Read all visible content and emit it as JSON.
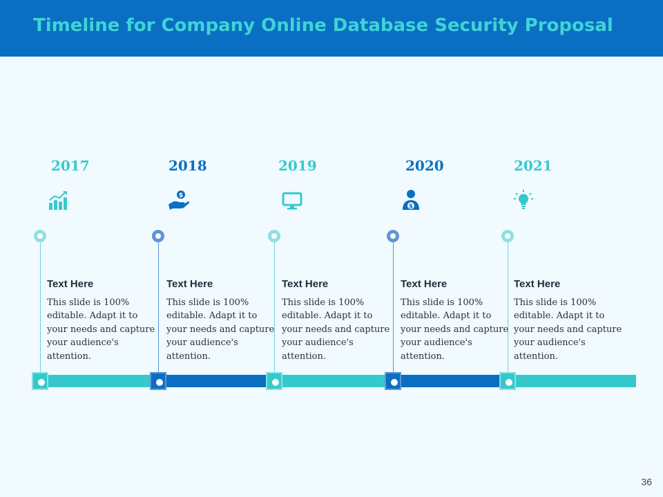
{
  "slide": {
    "title": "Timeline for Company Online Database Security Proposal",
    "page_number": "36"
  },
  "milestones": [
    {
      "year": "2017",
      "icon": "growth-chart-icon",
      "heading": "Text Here",
      "body": "This slide is 100% editable. Adapt it to your needs and capture your audience's attention."
    },
    {
      "year": "2018",
      "icon": "hand-coin-icon",
      "heading": "Text Here",
      "body": "This slide is 100% editable. Adapt it to your needs and capture your audience's attention."
    },
    {
      "year": "2019",
      "icon": "monitor-icon",
      "heading": "Text Here",
      "body": "This slide is 100% editable. Adapt it to your needs and capture your audience's attention."
    },
    {
      "year": "2020",
      "icon": "businessman-dollar-icon",
      "heading": "Text Here",
      "body": "This slide is 100% editable. Adapt it to your needs and capture your audience's attention."
    },
    {
      "year": "2021",
      "icon": "lightbulb-icon",
      "heading": "Text Here",
      "body": "This slide is 100% editable. Adapt it to your needs and capture your audience's attention."
    }
  ],
  "colors": {
    "header_bg": "#0a6fc2",
    "title": "#3fd3d6",
    "teal": "#35c9cc",
    "blue": "#0a6fc2",
    "background": "#f0faff"
  }
}
